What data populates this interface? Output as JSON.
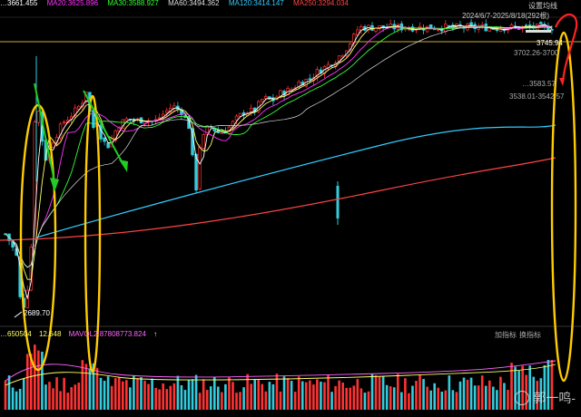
{
  "top_legend": [
    {
      "text": "…3661.455",
      "color": "#ffffff"
    },
    {
      "text": "MA20:3625.896",
      "color": "#ff33ff"
    },
    {
      "text": "MA30:3588.927",
      "color": "#33ff33"
    },
    {
      "text": "MA60:3494.362",
      "color": "#dddddd"
    },
    {
      "text": "MA120:3414.147",
      "color": "#33ccff"
    },
    {
      "text": "MA250:3294.034",
      "color": "#ff4444"
    }
  ],
  "right_panel": {
    "settings_label": "设置均线",
    "range_label": "2024/6/7-2025/8/18(292根)",
    "price_high": "3745.94",
    "price_tag_1": "3702.26-3700",
    "price_tag_2": "…3583.57",
    "price_tag_3": "3538.01-3542.57"
  },
  "low_price_label": "2689.70",
  "vol_legend": [
    {
      "text": "…650504",
      "color": "#ffff66"
    },
    {
      "text": "12.648",
      "color": "#ffff66"
    },
    {
      "text": "MAVOL2:87808773.824",
      "color": "#ff66ff"
    },
    {
      "text": "↑",
      "color": "#ffff66"
    }
  ],
  "vol_tools": {
    "add": "加指标",
    "switch": "换指标"
  },
  "watermark": "郭一鸣-",
  "colors": {
    "up": "#ff3333",
    "down": "#33ccdd",
    "ma_white": "#ffffff",
    "ma5": "#ffff66",
    "ma20": "#ff33ff",
    "ma30": "#33ff33",
    "ma60": "#dddddd",
    "ma120": "#33ccff",
    "ma250": "#ff4444",
    "reference": "#ccaa33",
    "annotation_yellow": "#ffcc00",
    "annotation_red": "#ff2222",
    "arrow_green": "#22cc22"
  },
  "chart_data": {
    "type": "candlestick",
    "x_range": [
      "2024/6/7",
      "2025/8/18"
    ],
    "bar_count": 292,
    "y_low_label": 2689.7,
    "y_high_label": 3745.94,
    "price_path": [
      [
        0,
        3000
      ],
      [
        8,
        2960
      ],
      [
        18,
        2890
      ],
      [
        22,
        2730
      ],
      [
        26,
        2700
      ],
      [
        30,
        2760
      ],
      [
        35,
        2950
      ],
      [
        38,
        3380
      ],
      [
        40,
        3500
      ],
      [
        45,
        3350
      ],
      [
        50,
        3250
      ],
      [
        55,
        3300
      ],
      [
        60,
        3330
      ],
      [
        65,
        3360
      ],
      [
        70,
        3390
      ],
      [
        80,
        3420
      ],
      [
        90,
        3460
      ],
      [
        95,
        3510
      ],
      [
        98,
        3440
      ],
      [
        103,
        3370
      ],
      [
        108,
        3400
      ],
      [
        112,
        3320
      ],
      [
        120,
        3300
      ],
      [
        130,
        3380
      ],
      [
        140,
        3400
      ],
      [
        150,
        3395
      ],
      [
        160,
        3400
      ],
      [
        170,
        3390
      ],
      [
        180,
        3420
      ],
      [
        190,
        3450
      ],
      [
        200,
        3430
      ],
      [
        210,
        3360
      ],
      [
        215,
        3100
      ],
      [
        220,
        3300
      ],
      [
        230,
        3380
      ],
      [
        240,
        3350
      ],
      [
        250,
        3360
      ],
      [
        260,
        3400
      ],
      [
        270,
        3430
      ],
      [
        280,
        3430
      ],
      [
        290,
        3480
      ],
      [
        300,
        3470
      ],
      [
        310,
        3500
      ],
      [
        320,
        3510
      ],
      [
        330,
        3540
      ],
      [
        340,
        3550
      ],
      [
        350,
        3580
      ],
      [
        360,
        3600
      ],
      [
        370,
        3625
      ],
      [
        380,
        3660
      ],
      [
        390,
        3710
      ],
      [
        395,
        3745
      ]
    ],
    "series": [
      {
        "name": "MA20",
        "value": 3625.896
      },
      {
        "name": "MA30",
        "value": 3588.927
      },
      {
        "name": "MA60",
        "value": 3494.362
      },
      {
        "name": "MA120",
        "value": 3414.147
      },
      {
        "name": "MA250",
        "value": 3294.034
      }
    ],
    "volume": {
      "series": [
        {
          "name": "MAVOL2",
          "value": 87808773.824
        }
      ]
    }
  }
}
